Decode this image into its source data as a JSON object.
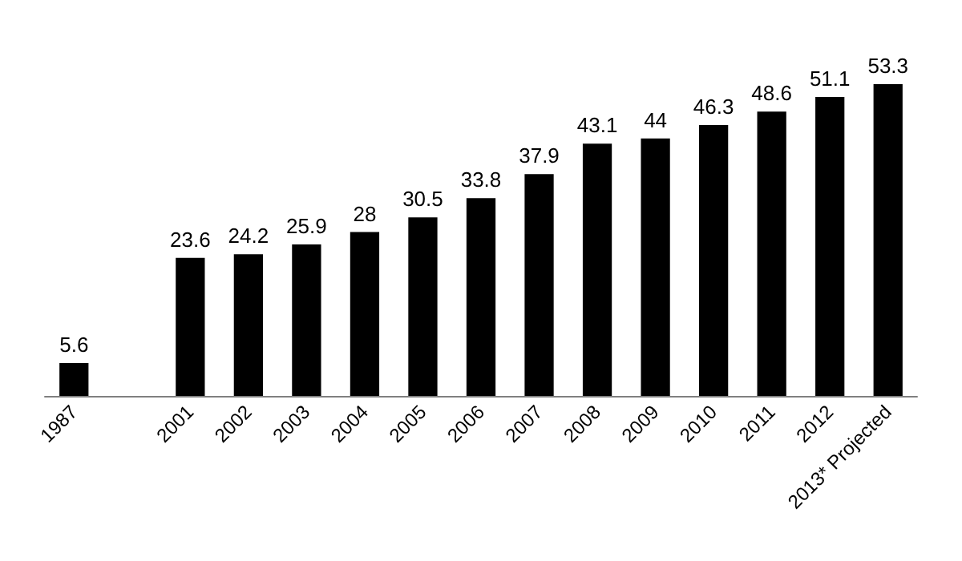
{
  "chart_data": {
    "type": "bar",
    "categories": [
      "1987",
      null,
      "2001",
      "2002",
      "2003",
      "2004",
      "2005",
      "2006",
      "2007",
      "2008",
      "2009",
      "2010",
      "2011",
      "2012",
      "2013* Projected"
    ],
    "values": [
      5.6,
      null,
      23.6,
      24.2,
      25.9,
      28,
      30.5,
      33.8,
      37.9,
      43.1,
      44,
      46.3,
      48.6,
      51.1,
      53.3
    ],
    "color": "#000000",
    "data_labels": true
  }
}
